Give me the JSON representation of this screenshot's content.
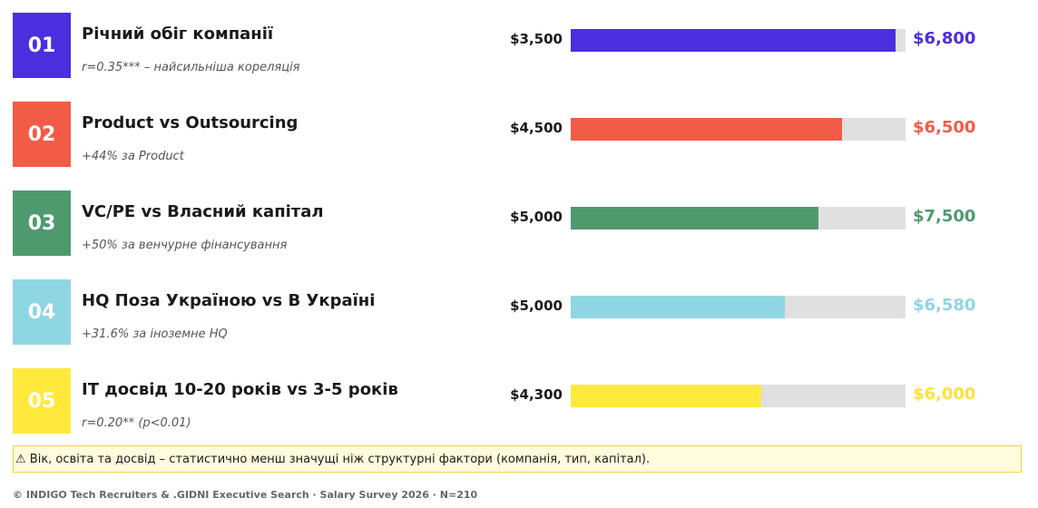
{
  "rows": [
    {
      "number": "01",
      "title": "Річний обіг компанії",
      "note": "r=0.35*** – найсильніша кореляція",
      "low": "$3,500",
      "high": "$6,800",
      "color": "#4b2ede",
      "text_color": "#4b2ede",
      "fill": 97
    },
    {
      "number": "02",
      "title": "Product vs Outsourcing",
      "note": "+44% за Product",
      "low": "$4,500",
      "high": "$6,500",
      "color": "#f25c46",
      "text_color": "#f25c46",
      "fill": 81
    },
    {
      "number": "03",
      "title": "VC/PE vs Власний капітал",
      "note": "+50% за венчурне фінансування",
      "low": "$5,000",
      "high": "$7,500",
      "color": "#4e9a6e",
      "text_color": "#4e9a6e",
      "fill": 74
    },
    {
      "number": "04",
      "title": "HQ Поза Україною vs В Україні",
      "note": "+31.6% за іноземне HQ",
      "low": "$5,000",
      "high": "$6,580",
      "color": "#8fd6e3",
      "text_color": "#8fd6e3",
      "fill": 64
    },
    {
      "number": "05",
      "title": "IT досвід 10-20 років vs 3-5 років",
      "note": "r=0.20** (p<0.01)",
      "low": "$4,300",
      "high": "$6,000",
      "color": "#ffe93d",
      "text_color": "#ffe13b",
      "fill": 57
    }
  ],
  "xlim": [
    0,
    100
  ],
  "footnote": "⚠ Вік, освіта та досвід – статистично менш значущі ніж структурні фактори (компанія, тип, капітал).",
  "credit": "© INDIGO Tech Recruiters & .GIDNI Executive Search · Salary Survey 2026 · N=210"
}
